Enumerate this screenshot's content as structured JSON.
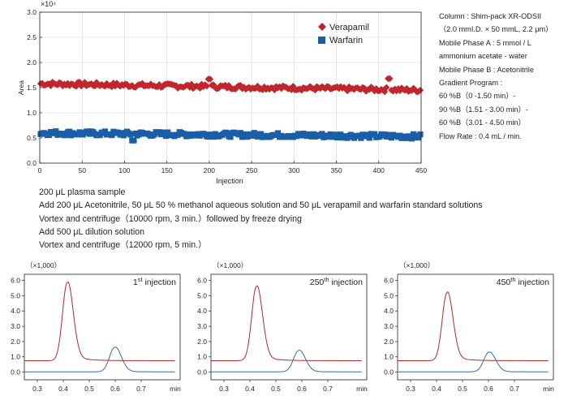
{
  "top_chart": {
    "type": "scatter",
    "ylabel": "Area",
    "xlabel": "Injection",
    "y_exponent_label": "×10⁴",
    "xlim": [
      0,
      450
    ],
    "ylim": [
      0,
      3.0
    ],
    "x_ticks": [
      0,
      50,
      100,
      150,
      200,
      250,
      300,
      350,
      400,
      450
    ],
    "y_ticks": [
      0.0,
      0.5,
      1.0,
      1.5,
      2.0,
      2.5,
      3.0
    ],
    "legend_position": "top-right",
    "series": [
      {
        "name": "Verapamil",
        "marker": "diamond",
        "color": "#c0272d",
        "mean": 1.5,
        "start_value": 1.58,
        "end_value": 1.45,
        "outliers": [
          [
            200,
            1.67
          ],
          [
            412,
            1.68
          ]
        ]
      },
      {
        "name": "Warfarin",
        "marker": "square",
        "color": "#1a5ea8",
        "mean": 0.55,
        "start_value": 0.6,
        "end_value": 0.53,
        "outliers": [
          [
            110,
            0.45
          ]
        ]
      }
    ]
  },
  "conditions": [
    "Column : Shim-pack XR-ODSII",
    "（2.0 mmI.D. × 50 mmL, 2.2 μm）",
    "Mobile Phase A : 5 mmol / L",
    "ammonium acetate - water",
    "Mobile Phase B : Acetonitrile",
    "Gradient Program :",
    "60 %B（0 -1.50 min）-",
    "90 %B（1.51 - 3.00 min）-",
    "60 %B（3.01 - 4.50 min）",
    "Flow Rate : 0.4 mL / min."
  ],
  "procedure": [
    "200 μL plasma sample",
    "Add 200 μL Acetonitrile, 50 μL 50 % methanol aqueous solution and 50 μL verapamil and warfarin standard solutions",
    "Vortex and centrifuge（10000 rpm, 3 min.）followed by freeze drying",
    "Add 500 μL dilution solution",
    "Vortex and centrifuge（12000 rpm, 5 min.）"
  ],
  "chart_data": [
    {
      "type": "line",
      "label": "1st injection",
      "unit_label": "（×1,000）",
      "xlabel": "min",
      "xlim": [
        0.25,
        0.85
      ],
      "ylim": [
        -0.5,
        6.4
      ],
      "x_ticks": [
        0.3,
        0.4,
        0.5,
        0.6,
        0.7
      ],
      "y_ticks": [
        0.0,
        1.0,
        2.0,
        3.0,
        4.0,
        5.0,
        6.0
      ],
      "series": [
        {
          "color": "#b3282d",
          "baseline": 0.75,
          "peaks": [
            {
              "x": 0.415,
              "height": 5.1,
              "sigma": 0.018,
              "tail": 0.05
            }
          ]
        },
        {
          "color": "#2b6eb0",
          "baseline": 0.02,
          "peaks": [
            {
              "x": 0.598,
              "height": 1.6,
              "sigma": 0.02,
              "tail": 0.03
            }
          ]
        }
      ]
    },
    {
      "type": "line",
      "label": "250th injection",
      "unit_label": "（×1,000）",
      "xlabel": "min",
      "xlim": [
        0.25,
        0.85
      ],
      "ylim": [
        -0.5,
        6.4
      ],
      "x_ticks": [
        0.3,
        0.4,
        0.5,
        0.6,
        0.7
      ],
      "y_ticks": [
        0.0,
        1.0,
        2.0,
        3.0,
        4.0,
        5.0,
        6.0
      ],
      "series": [
        {
          "color": "#b3282d",
          "baseline": 0.75,
          "peaks": [
            {
              "x": 0.425,
              "height": 4.85,
              "sigma": 0.018,
              "tail": 0.05
            }
          ]
        },
        {
          "color": "#2b6eb0",
          "baseline": 0.02,
          "peaks": [
            {
              "x": 0.588,
              "height": 1.4,
              "sigma": 0.02,
              "tail": 0.03
            }
          ]
        }
      ]
    },
    {
      "type": "line",
      "label": "450th injection",
      "unit_label": "（×1,000）",
      "xlabel": "min",
      "xlim": [
        0.25,
        0.85
      ],
      "ylim": [
        -0.5,
        6.4
      ],
      "x_ticks": [
        0.3,
        0.4,
        0.5,
        0.6,
        0.7
      ],
      "y_ticks": [
        0.0,
        1.0,
        2.0,
        3.0,
        4.0,
        5.0,
        6.0
      ],
      "series": [
        {
          "color": "#b3282d",
          "baseline": 0.75,
          "peaks": [
            {
              "x": 0.44,
              "height": 4.45,
              "sigma": 0.018,
              "tail": 0.05
            }
          ]
        },
        {
          "color": "#2b6eb0",
          "baseline": 0.02,
          "peaks": [
            {
              "x": 0.602,
              "height": 1.28,
              "sigma": 0.02,
              "tail": 0.03
            }
          ]
        }
      ]
    }
  ]
}
